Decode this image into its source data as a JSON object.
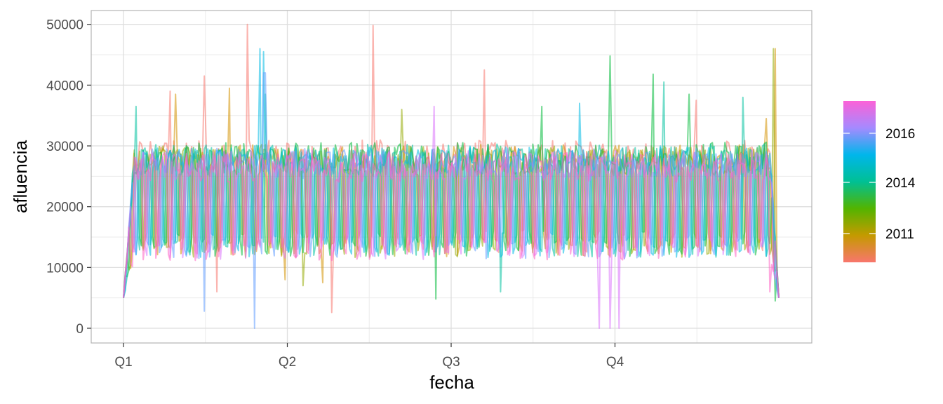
{
  "chart_data": {
    "type": "line",
    "title": "",
    "xlabel": "fecha",
    "ylabel": "afluencia",
    "x_ticks": [
      "Q1",
      "Q2",
      "Q3",
      "Q4"
    ],
    "y_ticks": [
      "0",
      "10000",
      "20000",
      "30000",
      "40000",
      "50000"
    ],
    "ylim": [
      0,
      50000
    ],
    "x_range_quarters": [
      0,
      4
    ],
    "grid": true,
    "legend": {
      "type": "colorbar",
      "placement": "right",
      "title": "",
      "labels": [
        "2011",
        "2014",
        "2016"
      ],
      "colors": [
        "#F8766D",
        "#C49A00",
        "#53B400",
        "#00C094",
        "#00B6EB",
        "#A58AFF",
        "#FB61D7"
      ]
    },
    "series": [
      {
        "year": 2010,
        "color": "#F8766D",
        "mean": 21500,
        "amp": 9500,
        "peaks": [
          [
            0.76,
            50000
          ],
          [
            1.52,
            49800
          ],
          [
            0.49,
            41500
          ],
          [
            2.2,
            42500
          ],
          [
            3.5,
            37500
          ],
          [
            0.28,
            39000
          ]
        ],
        "dips": [
          [
            0.57,
            6000
          ],
          [
            1.27,
            2600
          ]
        ]
      },
      {
        "year": 2011,
        "color": "#D39200",
        "mean": 21000,
        "amp": 9300,
        "peaks": [
          [
            3.98,
            46000
          ],
          [
            0.65,
            39500
          ],
          [
            0.32,
            38500
          ],
          [
            3.92,
            34500
          ]
        ],
        "dips": [
          [
            1.22,
            7500
          ],
          [
            0.99,
            8000
          ]
        ]
      },
      {
        "year": 2012,
        "color": "#93AA00",
        "mean": 20800,
        "amp": 9200,
        "peaks": [
          [
            3.97,
            46000
          ],
          [
            1.7,
            36000
          ]
        ],
        "dips": [
          [
            1.1,
            7000
          ]
        ]
      },
      {
        "year": 2013,
        "color": "#00BA38",
        "mean": 21200,
        "amp": 9400,
        "peaks": [
          [
            2.97,
            44800
          ],
          [
            3.23,
            41800
          ],
          [
            2.55,
            36500
          ],
          [
            3.45,
            38500
          ]
        ],
        "dips": [
          [
            1.91,
            4800
          ],
          [
            3.98,
            4500
          ]
        ]
      },
      {
        "year": 2014,
        "color": "#00C19F",
        "mean": 21000,
        "amp": 9300,
        "peaks": [
          [
            0.08,
            36500
          ],
          [
            3.3,
            40500
          ],
          [
            3.78,
            38000
          ],
          [
            0.87,
            38500
          ]
        ],
        "dips": [
          [
            2.3,
            6000
          ]
        ]
      },
      {
        "year": 2015,
        "color": "#00B9E3",
        "mean": 20800,
        "amp": 9200,
        "peaks": [
          [
            0.83,
            46000
          ],
          [
            0.85,
            45500
          ],
          [
            2.78,
            37000
          ]
        ],
        "dips": []
      },
      {
        "year": 2016,
        "color": "#619CFF",
        "mean": 20500,
        "amp": 9100,
        "peaks": [
          [
            0.86,
            42000
          ]
        ],
        "dips": [
          [
            0.49,
            2800
          ],
          [
            0.8,
            0
          ]
        ]
      },
      {
        "year": 2017,
        "color": "#DB72FB",
        "mean": 20300,
        "amp": 9000,
        "peaks": [
          [
            1.9,
            36500
          ]
        ],
        "dips": [
          [
            2.9,
            0
          ],
          [
            2.97,
            0
          ],
          [
            3.02,
            0
          ]
        ]
      },
      {
        "year": 2018,
        "color": "#FF61C3",
        "mean": 20000,
        "amp": 8900,
        "peaks": [],
        "dips": [
          [
            3.95,
            6000
          ]
        ]
      }
    ]
  }
}
